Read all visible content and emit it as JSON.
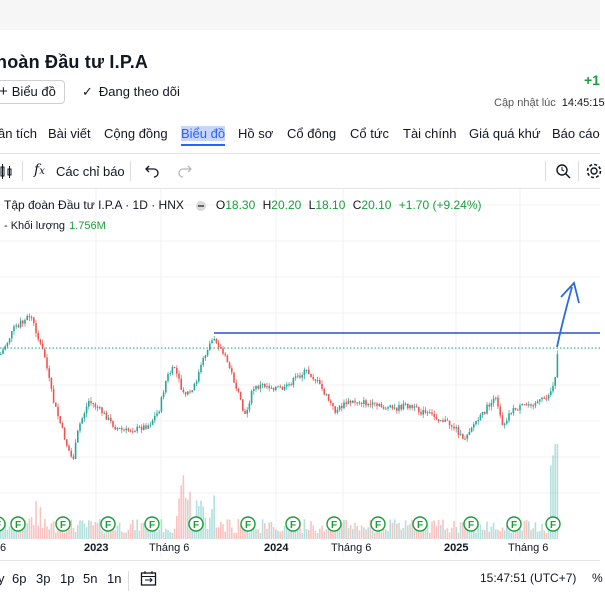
{
  "header": {
    "company_name": "hoàn Đầu tư I.P.A",
    "price_change": "+1",
    "chart_button": "Biểu đồ",
    "follow_label": "Đang theo dõi",
    "updated_label": "Cập nhật lúc",
    "updated_time": "14:45:15"
  },
  "tabs": [
    "ân tích",
    "Bài viết",
    "Cộng đồng",
    "Biểu đồ",
    "Hồ sơ",
    "Cổ đông",
    "Cổ tức",
    "Tài chính",
    "Giá quá khứ",
    "Báo cáo"
  ],
  "active_tab": "Biểu đồ",
  "toolbar": {
    "indicators_label": "Các chỉ báo"
  },
  "legend": {
    "title": "Tập đoàn Đầu tư I.P.A · 1D · HNX",
    "open_label": "O",
    "open": "18.30",
    "high_label": "H",
    "high": "20.20",
    "low_label": "L",
    "low": "18.10",
    "close_label": "C",
    "close": "20.10",
    "change": "+1.70 (+9.24%)",
    "volume_label": "- Khối lượng",
    "volume_value": "1.756M"
  },
  "x_axis_labels": [
    "6",
    "2023",
    "Tháng 6",
    "2024",
    "Tháng 6",
    "2025",
    "Tháng 6"
  ],
  "bottom": {
    "ranges": [
      "y",
      "6p",
      "3p",
      "1p",
      "5n",
      "1n"
    ],
    "clock": "15:47:51 (UTC+7)",
    "pct": "%"
  },
  "colors": {
    "up": "#26a69a",
    "down": "#ef5350",
    "resistance_line": "#2b50c8",
    "accent": "#2962ff",
    "positive_text": "#1a9e3a"
  },
  "chart_data": {
    "type": "candlestick",
    "series_name": "Tập đoàn Đầu tư I.P.A",
    "interval": "1D",
    "exchange": "HNX",
    "last_bar": {
      "open": 18.3,
      "high": 20.2,
      "low": 18.1,
      "close": 20.1,
      "change": 1.7,
      "change_pct": 9.24,
      "volume": "1.756M"
    },
    "x_ticks": [
      "6",
      "2023",
      "Tháng 6",
      "2024",
      "Tháng 6",
      "2025",
      "Tháng 6"
    ],
    "grid": true,
    "annotations": [
      "horizontal resistance line at prior 2023 peak",
      "upward arrow after breakout",
      "dividend markers (F) along bottom"
    ]
  }
}
